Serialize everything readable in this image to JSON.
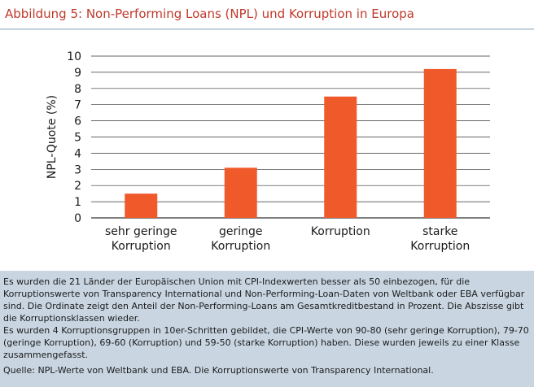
{
  "title": "Abbildung 5: Non-Performing Loans (NPL) und Korruption in Europa",
  "chart_data": {
    "type": "bar",
    "categories": [
      [
        "sehr geringe",
        "Korruption"
      ],
      [
        "geringe",
        "Korruption"
      ],
      [
        "Korruption"
      ],
      [
        "starke",
        "Korruption"
      ]
    ],
    "values": [
      1.5,
      3.1,
      7.5,
      9.2
    ],
    "ylabel": "NPL-Quote (%)",
    "xlabel": "",
    "ylim": [
      0,
      10
    ],
    "yticks": [
      0,
      1,
      2,
      3,
      4,
      5,
      6,
      7,
      8,
      9,
      10
    ],
    "grid": true,
    "bar_color": "#f05a2a"
  },
  "notes": {
    "text": "Es wurden die 21 Länder der Europäischen Union mit CPI-Indexwerten besser als 50 einbezogen, für die Korruptionswerte von Transparency International und Non-Performing-Loan-Daten von Weltbank oder EBA verfügbar sind. Die Ordinate zeigt den Anteil der Non-Performing-Loans am Gesamtkreditbestand in Prozent. Die Abszisse gibt die Korruptionsklassen wieder.",
    "groups": "Es wurden 4 Korruptionsgruppen in 10er-Schritten gebildet, die CPI-Werte von 90-80 (sehr geringe Korruption), 79-70 (geringe Korruption), 69-60 (Korruption) und 59-50 (starke Korruption) haben. Diese wurden jeweils zu einer Klasse zusammengefasst.",
    "source": "Quelle: NPL-Werte von Weltbank und EBA. Die Korruptionswerte von Transparency International."
  }
}
